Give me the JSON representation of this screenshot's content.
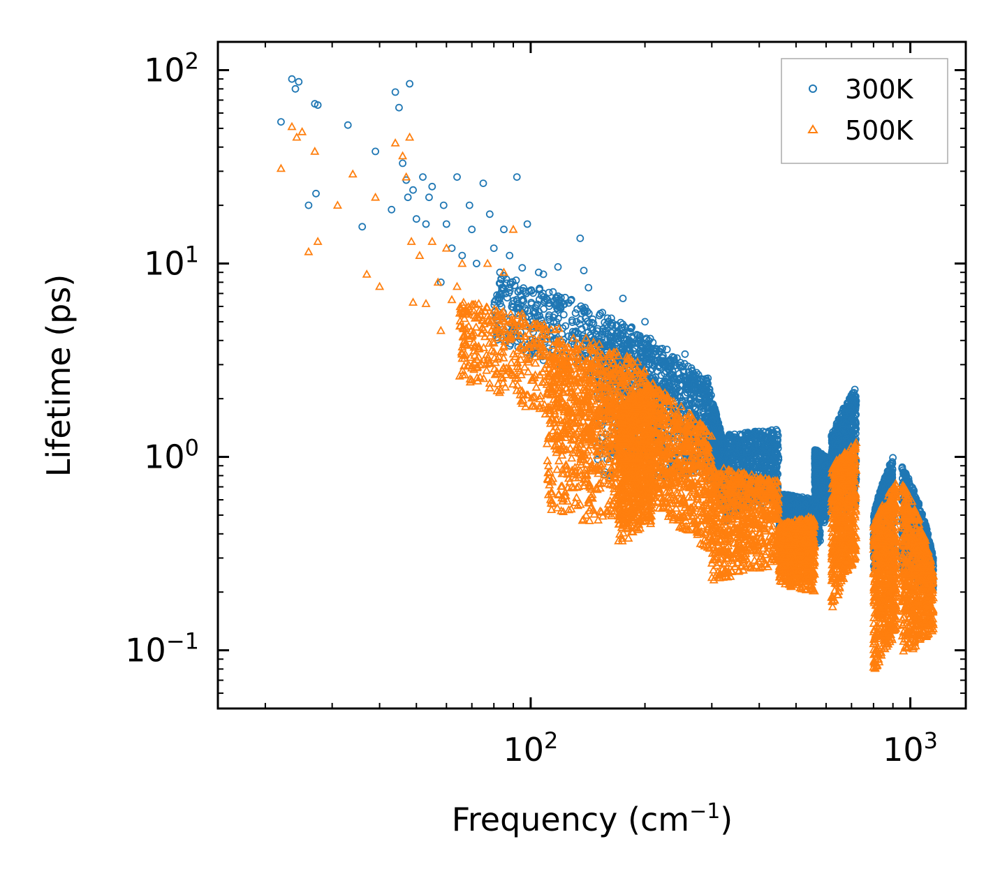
{
  "chart_data": {
    "type": "scatter",
    "title": "",
    "xlabel": "Frequency (cm",
    "xlabel_sup": "−1",
    "xlabel_tail": ")",
    "ylabel": "Lifetime (ps)",
    "xscale": "log",
    "yscale": "log",
    "xlim": [
      15,
      1400
    ],
    "ylim": [
      0.05,
      140
    ],
    "x_ticks": [
      {
        "base": "10",
        "exp": "2",
        "value": 100
      },
      {
        "base": "10",
        "exp": "3",
        "value": 1000
      }
    ],
    "y_ticks": [
      {
        "base": "10",
        "exp": "2",
        "value": 100
      },
      {
        "base": "10",
        "exp": "1",
        "value": 10
      },
      {
        "base": "10",
        "exp": "0",
        "value": 1
      },
      {
        "base": "10",
        "exp": "−1",
        "value": 0.1
      }
    ],
    "legend_placement": "top-right",
    "series": [
      {
        "name": "300K",
        "marker": "circle",
        "color": "#1f77b4",
        "points": [
          [
            22.0,
            54
          ],
          [
            23.5,
            90
          ],
          [
            24.0,
            80
          ],
          [
            24.5,
            87
          ],
          [
            26,
            20
          ],
          [
            27,
            67
          ],
          [
            27.5,
            66
          ],
          [
            27.2,
            23
          ],
          [
            33,
            52
          ],
          [
            36,
            15.5
          ],
          [
            39,
            38
          ],
          [
            43,
            19
          ],
          [
            44,
            77
          ],
          [
            45,
            64
          ],
          [
            46,
            33
          ],
          [
            47,
            27
          ],
          [
            47.5,
            22
          ],
          [
            48,
            85
          ],
          [
            49,
            24
          ],
          [
            50,
            17
          ],
          [
            52,
            28
          ],
          [
            53,
            16
          ],
          [
            54,
            22
          ],
          [
            55,
            25
          ],
          [
            58,
            8
          ],
          [
            59,
            20
          ],
          [
            60,
            16
          ],
          [
            62,
            12
          ],
          [
            64,
            28
          ],
          [
            66,
            11
          ],
          [
            69,
            20
          ],
          [
            70,
            15
          ],
          [
            72,
            10
          ],
          [
            75,
            26
          ],
          [
            78,
            18
          ],
          [
            80,
            12
          ],
          [
            83,
            9
          ],
          [
            85,
            15
          ],
          [
            88,
            11
          ],
          [
            92,
            28
          ],
          [
            95,
            9.5
          ],
          [
            98,
            16
          ],
          [
            105,
            9
          ],
          [
            108,
            8.8
          ],
          [
            118,
            9.6
          ],
          [
            135,
            13.5
          ],
          [
            138,
            9.2
          ],
          [
            142,
            7.5
          ],
          [
            175,
            6.6
          ],
          [
            200,
            5
          ],
          [
            255,
            3.4
          ]
        ],
        "bands": [
          {
            "x": [
              80,
              300
            ],
            "y_lo": [
              3.8,
              0.9
            ],
            "y_hi": [
              9.0,
              2.2
            ]
          },
          {
            "x": [
              150,
              300
            ],
            "y_lo": [
              0.8,
              0.75
            ],
            "y_hi": [
              4.8,
              2.5
            ]
          },
          {
            "x": [
              300,
              330
            ],
            "y_lo": [
              0.8,
              0.45
            ],
            "y_hi": [
              2.0,
              0.85
            ]
          },
          {
            "x": [
              330,
              450
            ],
            "y_lo": [
              0.5,
              0.6
            ],
            "y_hi": [
              1.3,
              1.4
            ]
          },
          {
            "x": [
              450,
              580
            ],
            "y_lo": [
              0.4,
              0.35
            ],
            "y_hi": [
              0.65,
              0.6
            ]
          },
          {
            "x": [
              560,
              600
            ],
            "y_lo": [
              0.5,
              0.45
            ],
            "y_hi": [
              1.1,
              1.0
            ]
          },
          {
            "x": [
              620,
              720
            ],
            "y_lo": [
              0.5,
              0.55
            ],
            "y_hi": [
              1.3,
              2.3
            ]
          },
          {
            "x": [
              800,
              900
            ],
            "y_lo": [
              0.25,
              0.3
            ],
            "y_hi": [
              0.5,
              1.0
            ]
          },
          {
            "x": [
              950,
              1150
            ],
            "y_lo": [
              0.25,
              0.2
            ],
            "y_hi": [
              0.9,
              0.3
            ]
          }
        ]
      },
      {
        "name": "500K",
        "marker": "triangle",
        "color": "#ff7f0e",
        "points": [
          [
            22,
            31
          ],
          [
            23.5,
            51
          ],
          [
            24.2,
            45
          ],
          [
            25,
            48
          ],
          [
            26,
            11.5
          ],
          [
            27,
            38
          ],
          [
            27.5,
            13
          ],
          [
            31,
            20
          ],
          [
            34,
            29
          ],
          [
            37,
            8.8
          ],
          [
            39,
            22
          ],
          [
            40,
            7.6
          ],
          [
            44,
            42
          ],
          [
            46,
            36
          ],
          [
            47,
            28
          ],
          [
            48,
            45
          ],
          [
            48.5,
            13
          ],
          [
            49,
            6.3
          ],
          [
            51,
            11
          ],
          [
            53,
            6.2
          ],
          [
            55,
            13
          ],
          [
            57,
            8
          ],
          [
            58,
            4.5
          ],
          [
            60,
            12
          ],
          [
            62,
            6.5
          ],
          [
            64,
            7.6
          ],
          [
            66,
            10
          ],
          [
            70,
            4.2
          ],
          [
            73,
            6.2
          ],
          [
            77,
            10
          ],
          [
            80,
            3.5
          ],
          [
            85,
            9
          ],
          [
            90,
            15
          ],
          [
            95,
            5.5
          ]
        ],
        "bands": [
          {
            "x": [
              65,
              200
            ],
            "y_lo": [
              2.5,
              0.55
            ],
            "y_hi": [
              6.5,
              3.0
            ]
          },
          {
            "x": [
              110,
              200
            ],
            "y_lo": [
              0.5,
              0.4
            ],
            "y_hi": [
              3.5,
              2.8
            ]
          },
          {
            "x": [
              170,
              210
            ],
            "y_lo": [
              0.35,
              0.45
            ],
            "y_hi": [
              1.8,
              2.5
            ]
          },
          {
            "x": [
              200,
              300
            ],
            "y_lo": [
              0.55,
              0.3
            ],
            "y_hi": [
              2.5,
              1.3
            ]
          },
          {
            "x": [
              300,
              450
            ],
            "y_lo": [
              0.22,
              0.28
            ],
            "y_hi": [
              0.9,
              0.75
            ]
          },
          {
            "x": [
              450,
              560
            ],
            "y_lo": [
              0.22,
              0.2
            ],
            "y_hi": [
              0.45,
              0.5
            ]
          },
          {
            "x": [
              620,
              720
            ],
            "y_lo": [
              0.15,
              0.3
            ],
            "y_hi": [
              0.9,
              1.2
            ]
          },
          {
            "x": [
              800,
              920
            ],
            "y_lo": [
              0.075,
              0.12
            ],
            "y_hi": [
              0.45,
              0.75
            ]
          },
          {
            "x": [
              950,
              1150
            ],
            "y_lo": [
              0.09,
              0.12
            ],
            "y_hi": [
              0.75,
              0.25
            ]
          }
        ]
      }
    ]
  }
}
